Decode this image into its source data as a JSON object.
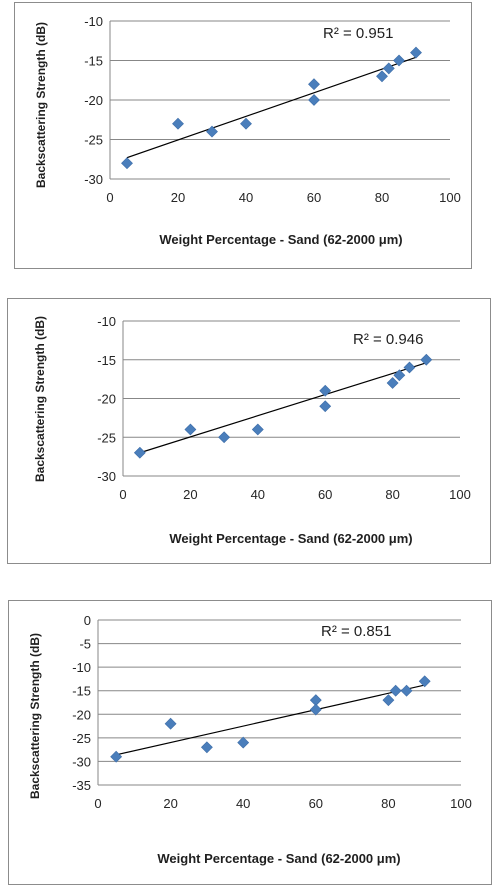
{
  "chart_data": [
    {
      "type": "scatter",
      "xlabel": "Weight Percentage  - Sand (62-2000 μm)",
      "ylabel": "Backscattering Strength (dB)",
      "xlim": [
        0,
        100
      ],
      "ylim": [
        -30,
        -10
      ],
      "xticks": [
        "0",
        "20",
        "40",
        "60",
        "80",
        "100"
      ],
      "yticks": [
        "-10",
        "-15",
        "-20",
        "-25",
        "-30"
      ],
      "grid": "horizontal",
      "marker_color": "#4a7ebb",
      "trendline": {
        "type": "linear",
        "x": [
          5,
          90
        ],
        "y": [
          -27.3,
          -14.6
        ],
        "r2_label": "R² = 0.951"
      },
      "points": [
        {
          "x": 5,
          "y": -28
        },
        {
          "x": 20,
          "y": -23
        },
        {
          "x": 30,
          "y": -24
        },
        {
          "x": 40,
          "y": -23
        },
        {
          "x": 60,
          "y": -18
        },
        {
          "x": 60,
          "y": -20
        },
        {
          "x": 80,
          "y": -17
        },
        {
          "x": 82,
          "y": -16
        },
        {
          "x": 85,
          "y": -15
        },
        {
          "x": 90,
          "y": -14
        }
      ]
    },
    {
      "type": "scatter",
      "xlabel": "Weight Percentage - Sand (62-2000 μm)",
      "ylabel": "Backscattering Strength (dB)",
      "xlim": [
        0,
        100
      ],
      "ylim": [
        -30,
        -10
      ],
      "xticks": [
        "0",
        "20",
        "40",
        "60",
        "80",
        "100"
      ],
      "yticks": [
        "-10",
        "-15",
        "-20",
        "-25",
        "-30"
      ],
      "grid": "horizontal",
      "marker_color": "#4a7ebb",
      "trendline": {
        "type": "linear",
        "x": [
          5,
          90
        ],
        "y": [
          -27.0,
          -15.4
        ],
        "r2_label": "R² = 0.946"
      },
      "points": [
        {
          "x": 5,
          "y": -27
        },
        {
          "x": 20,
          "y": -24
        },
        {
          "x": 30,
          "y": -25
        },
        {
          "x": 40,
          "y": -24
        },
        {
          "x": 60,
          "y": -19
        },
        {
          "x": 60,
          "y": -21
        },
        {
          "x": 80,
          "y": -18
        },
        {
          "x": 82,
          "y": -17
        },
        {
          "x": 85,
          "y": -16
        },
        {
          "x": 90,
          "y": -15
        }
      ]
    },
    {
      "type": "scatter",
      "xlabel": "Weight Percentage - Sand (62-2000 μm)",
      "ylabel": "Backscattering Strength (dB)",
      "xlim": [
        0,
        100
      ],
      "ylim": [
        -35,
        0
      ],
      "xticks": [
        "0",
        "20",
        "40",
        "60",
        "80",
        "100"
      ],
      "yticks": [
        "0",
        "-5",
        "-10",
        "-15",
        "-20",
        "-25",
        "-30",
        "-35"
      ],
      "grid": "horizontal",
      "marker_color": "#4a7ebb",
      "trendline": {
        "type": "linear",
        "x": [
          5,
          90
        ],
        "y": [
          -28.6,
          -13.8
        ],
        "r2_label": "R² = 0.851"
      },
      "points": [
        {
          "x": 5,
          "y": -29
        },
        {
          "x": 20,
          "y": -22
        },
        {
          "x": 30,
          "y": -27
        },
        {
          "x": 40,
          "y": -26
        },
        {
          "x": 60,
          "y": -17
        },
        {
          "x": 60,
          "y": -19
        },
        {
          "x": 80,
          "y": -17
        },
        {
          "x": 82,
          "y": -15
        },
        {
          "x": 85,
          "y": -15
        },
        {
          "x": 90,
          "y": -13
        }
      ]
    }
  ]
}
